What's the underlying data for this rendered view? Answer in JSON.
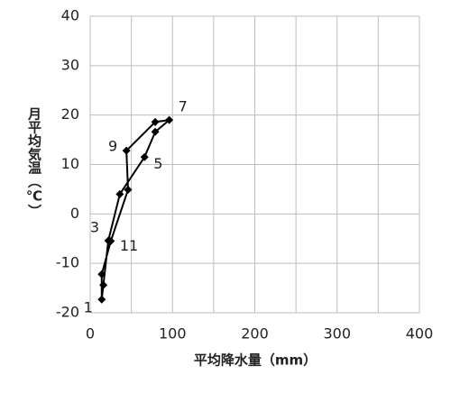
{
  "chart_data": {
    "type": "line",
    "x_label": "平均降水量（mm）",
    "y_label": "月平均気温（℃）",
    "x": [
      14,
      16,
      22,
      36,
      66,
      79,
      96,
      79,
      44,
      46,
      25,
      14
    ],
    "values": [
      -17.3,
      -14.4,
      -5.4,
      4.0,
      11.5,
      16.6,
      19.0,
      18.6,
      12.8,
      4.9,
      -5.5,
      -12.2
    ],
    "point_labels": [
      "1",
      null,
      "3",
      null,
      "5",
      null,
      "7",
      null,
      "9",
      null,
      "11",
      null
    ],
    "closed": true,
    "color": "#000000",
    "xlim": [
      0,
      400
    ],
    "xticks": [
      0,
      100,
      200,
      300,
      400
    ],
    "x_minor_grid": [
      50,
      150,
      250,
      350
    ],
    "ylim": [
      -20,
      40
    ],
    "yticks": [
      -20,
      -10,
      0,
      10,
      20,
      30,
      40
    ],
    "grid": true
  }
}
